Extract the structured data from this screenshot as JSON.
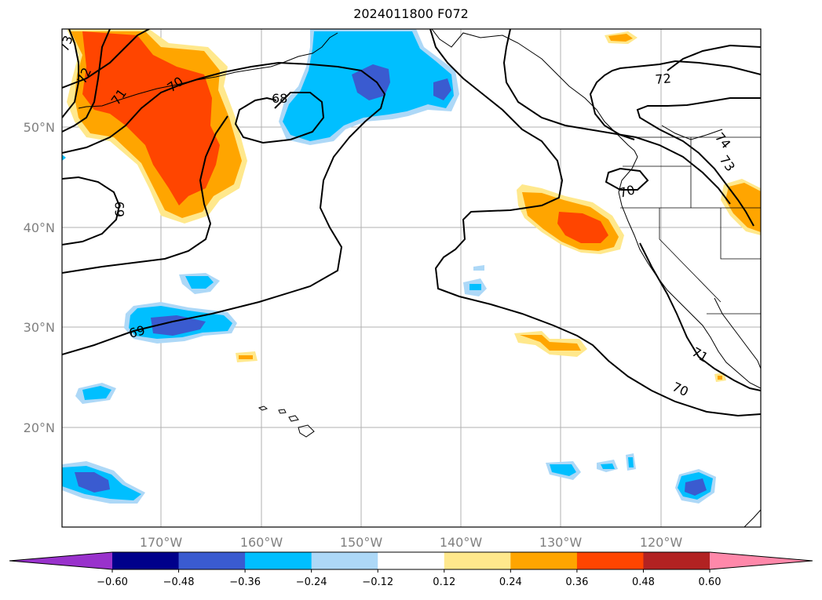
{
  "title": "2024011800 F072",
  "map": {
    "lat_labels": [
      "50°N",
      "40°N",
      "30°N",
      "20°N"
    ],
    "lon_labels": [
      "170°W",
      "160°W",
      "150°W",
      "140°W",
      "130°W",
      "120°W"
    ],
    "contour_labels": [
      "73",
      "72",
      "71",
      "70",
      "68",
      "69",
      "69",
      "72",
      "74",
      "73",
      "70",
      "71",
      "70"
    ]
  },
  "colorbar": {
    "tick_labels": [
      "−0.60",
      "−0.48",
      "−0.36",
      "−0.24",
      "−0.12",
      "0.12",
      "0.24",
      "0.36",
      "0.48",
      "0.60"
    ],
    "colors": [
      "#9932cc",
      "#00008b",
      "#3a5bd0",
      "#00bfff",
      "#add8f7",
      "#ffffff",
      "#ffe88c",
      "#ffa500",
      "#ff4500",
      "#b22222",
      "#ff88aa"
    ]
  }
}
